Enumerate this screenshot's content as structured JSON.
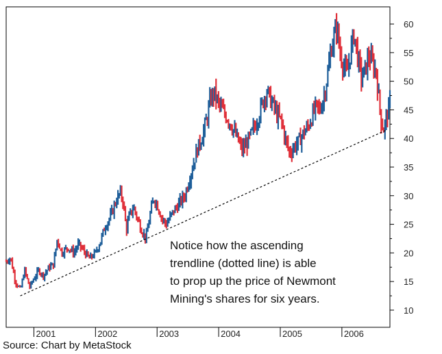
{
  "chart_data": {
    "type": "bar",
    "subtype": "ohlc-price-bars",
    "title": "",
    "source": "Source: Chart by MetaStock",
    "annotation": [
      "Notice how the ascending",
      "trendline (dotted line) is able",
      "to prop up the price of Newmont",
      "Mining's shares for six years."
    ],
    "x_axis": {
      "ticks": [
        "2001",
        "2002",
        "2003",
        "2004",
        "2005",
        "2006"
      ],
      "tick_values": [
        2001.0,
        2002.0,
        2003.0,
        2004.0,
        2005.0,
        2006.0
      ],
      "range": [
        2000.55,
        2006.78
      ]
    },
    "y_axis": {
      "ticks": [
        "10",
        "15",
        "20",
        "25",
        "30",
        "35",
        "40",
        "45",
        "50",
        "55",
        "60"
      ],
      "tick_values": [
        10,
        15,
        20,
        25,
        30,
        35,
        40,
        45,
        50,
        55,
        60
      ],
      "range": [
        7,
        63
      ],
      "position": "right"
    },
    "colors": {
      "up": "#1f5f9a",
      "down": "#e0303a",
      "trendline": "#000000"
    },
    "trendline": {
      "style": "dotted",
      "from": [
        2000.78,
        12.5
      ],
      "to": [
        2006.73,
        41.5
      ]
    },
    "price_path": [
      [
        2000.55,
        18.5
      ],
      [
        2000.62,
        19.2
      ],
      [
        2000.7,
        15.0
      ],
      [
        2000.78,
        13.5
      ],
      [
        2000.85,
        17.0
      ],
      [
        2000.93,
        14.0
      ],
      [
        2001.0,
        15.5
      ],
      [
        2001.08,
        17.0
      ],
      [
        2001.15,
        16.0
      ],
      [
        2001.25,
        17.5
      ],
      [
        2001.32,
        18.0
      ],
      [
        2001.38,
        22.5
      ],
      [
        2001.45,
        20.0
      ],
      [
        2001.55,
        21.0
      ],
      [
        2001.65,
        20.0
      ],
      [
        2001.72,
        21.5
      ],
      [
        2001.8,
        20.5
      ],
      [
        2001.9,
        19.0
      ],
      [
        2002.0,
        20.0
      ],
      [
        2002.08,
        22.0
      ],
      [
        2002.15,
        24.5
      ],
      [
        2002.25,
        26.5
      ],
      [
        2002.33,
        29.0
      ],
      [
        2002.4,
        30.5
      ],
      [
        2002.45,
        29.0
      ],
      [
        2002.5,
        24.0
      ],
      [
        2002.55,
        26.5
      ],
      [
        2002.62,
        28.0
      ],
      [
        2002.68,
        26.0
      ],
      [
        2002.75,
        24.0
      ],
      [
        2002.82,
        22.5
      ],
      [
        2002.9,
        27.5
      ],
      [
        2002.95,
        29.5
      ],
      [
        2003.0,
        28.5
      ],
      [
        2003.08,
        26.0
      ],
      [
        2003.15,
        25.0
      ],
      [
        2003.25,
        27.0
      ],
      [
        2003.35,
        28.5
      ],
      [
        2003.45,
        30.0
      ],
      [
        2003.55,
        34.0
      ],
      [
        2003.65,
        38.0
      ],
      [
        2003.72,
        40.0
      ],
      [
        2003.8,
        43.0
      ],
      [
        2003.87,
        47.0
      ],
      [
        2003.93,
        48.0
      ],
      [
        2004.0,
        46.0
      ],
      [
        2004.08,
        44.5
      ],
      [
        2004.15,
        43.5
      ],
      [
        2004.22,
        42.0
      ],
      [
        2004.3,
        40.0
      ],
      [
        2004.38,
        38.0
      ],
      [
        2004.45,
        39.0
      ],
      [
        2004.52,
        40.5
      ],
      [
        2004.58,
        42.0
      ],
      [
        2004.65,
        44.0
      ],
      [
        2004.72,
        46.5
      ],
      [
        2004.78,
        48.5
      ],
      [
        2004.83,
        47.0
      ],
      [
        2004.9,
        45.5
      ],
      [
        2004.95,
        44.0
      ],
      [
        2005.02,
        43.0
      ],
      [
        2005.08,
        40.0
      ],
      [
        2005.15,
        37.5
      ],
      [
        2005.22,
        38.5
      ],
      [
        2005.3,
        39.5
      ],
      [
        2005.38,
        41.0
      ],
      [
        2005.45,
        42.0
      ],
      [
        2005.52,
        44.0
      ],
      [
        2005.58,
        45.5
      ],
      [
        2005.65,
        45.0
      ],
      [
        2005.72,
        48.0
      ],
      [
        2005.78,
        52.0
      ],
      [
        2005.83,
        56.0
      ],
      [
        2005.88,
        58.0
      ],
      [
        2005.92,
        60.0
      ],
      [
        2005.96,
        55.5
      ],
      [
        2006.02,
        53.0
      ],
      [
        2006.08,
        51.0
      ],
      [
        2006.14,
        55.0
      ],
      [
        2006.2,
        58.5
      ],
      [
        2006.26,
        54.0
      ],
      [
        2006.32,
        50.5
      ],
      [
        2006.38,
        52.0
      ],
      [
        2006.44,
        54.5
      ],
      [
        2006.5,
        53.0
      ],
      [
        2006.56,
        51.5
      ],
      [
        2006.6,
        47.0
      ],
      [
        2006.64,
        43.0
      ],
      [
        2006.68,
        41.5
      ],
      [
        2006.73,
        44.0
      ],
      [
        2006.78,
        46.0
      ]
    ]
  }
}
